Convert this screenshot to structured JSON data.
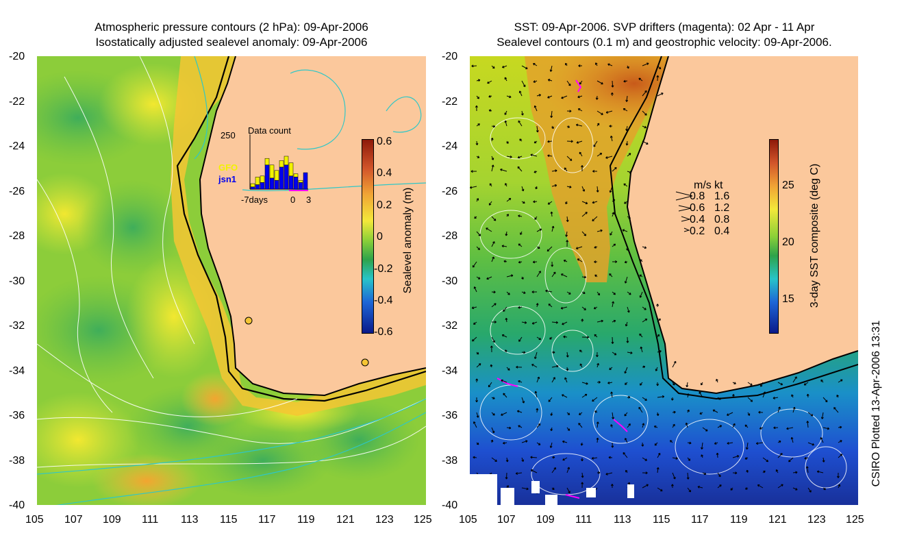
{
  "left_panel": {
    "title_line1": "Atmospheric pressure contours (2 hPa): 09-Apr-2006",
    "title_line2": "Isostatically adjusted sealevel anomaly: 09-Apr-2006",
    "y_ticks": [
      "-20",
      "-22",
      "-24",
      "-26",
      "-28",
      "-30",
      "-32",
      "-34",
      "-36",
      "-38",
      "-40"
    ],
    "x_ticks": [
      "105",
      "107",
      "109",
      "111",
      "113",
      "115",
      "117",
      "119",
      "121",
      "123",
      "125"
    ],
    "colorbar": {
      "label": "Sealevel anomaly (m)",
      "ticks": [
        "0.6",
        "0.4",
        "0.2",
        "0",
        "-0.2",
        "-0.4",
        "-0.6"
      ]
    },
    "inset": {
      "title": "Data count",
      "max_label": "250",
      "legend_gfo": "GFO",
      "legend_jsn1": "jsn1",
      "x_label_left": "-7days",
      "x_label_zero": "0",
      "x_label_right": "3",
      "gfo_color": "#f2f200",
      "jsn1_color": "#0000ee",
      "bars_total": [
        25,
        55,
        60,
        140,
        110,
        85,
        130,
        150,
        120,
        70,
        40,
        75
      ],
      "bars_jsn1": [
        10,
        20,
        30,
        110,
        50,
        40,
        100,
        110,
        60,
        55,
        30,
        75
      ]
    }
  },
  "right_panel": {
    "title_line1": "SST: 09-Apr-2006. SVP drifters (magenta): 02 Apr - 11 Apr",
    "title_line2": "Sealevel contours (0.1 m) and geostrophic velocity: 09-Apr-2006.",
    "y_ticks": [
      "-20",
      "-22",
      "-24",
      "-26",
      "-28",
      "-30",
      "-32",
      "-34",
      "-36",
      "-38",
      "-40"
    ],
    "x_ticks": [
      "105",
      "107",
      "109",
      "111",
      "113",
      "115",
      "117",
      "119",
      "121",
      "123",
      "125"
    ],
    "colorbar": {
      "label": "3-day SST composite (deg C)",
      "ticks": [
        "25",
        "20",
        "15"
      ]
    },
    "velocity_legend": {
      "header_ms": "m/s",
      "header_kt": "kt",
      "rows": [
        {
          "ms": "0.8",
          "kt": "1.6"
        },
        {
          "ms": "0.6",
          "kt": "1.2"
        },
        {
          "ms": "0.4",
          "kt": "0.8"
        },
        {
          "ms": "0.2",
          "kt": "0.4"
        }
      ]
    }
  },
  "credit": "CSIRO Plotted 13-Apr-2006 13:31",
  "colors": {
    "land": "#fbc89c",
    "drifter": "#ff00ff",
    "coast": "#000000"
  }
}
